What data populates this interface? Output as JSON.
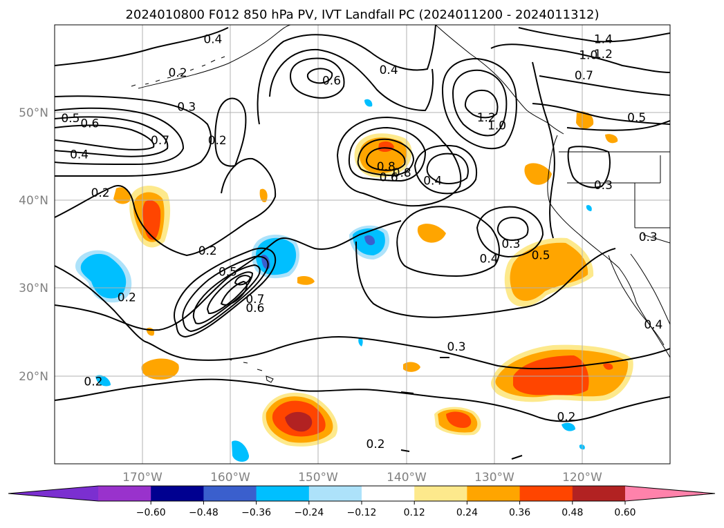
{
  "title": "2024010800 F012 850 hPa PV, IVT Landfall PC (2024011200 - 2024011312)",
  "map": {
    "lon_range": [
      -180,
      -110
    ],
    "lat_range": [
      10,
      60
    ],
    "lon_ticks": [
      {
        "value": -170,
        "label": "170°W"
      },
      {
        "value": -160,
        "label": "160°W"
      },
      {
        "value": -150,
        "label": "150°W"
      },
      {
        "value": -140,
        "label": "140°W"
      },
      {
        "value": -130,
        "label": "130°W"
      },
      {
        "value": -120,
        "label": "120°W"
      }
    ],
    "lat_ticks": [
      {
        "value": 50,
        "label": "50°N"
      },
      {
        "value": 40,
        "label": "40°N"
      },
      {
        "value": 30,
        "label": "30°N"
      },
      {
        "value": 20,
        "label": "20°N"
      }
    ],
    "grid": true
  },
  "colorbar": {
    "orientation": "horizontal",
    "extend": "both",
    "colors": [
      "#7b2fd0",
      "#9932cc",
      "#000090",
      "#3a5fcd",
      "#00bfff",
      "#ade2fa",
      "#ffffff",
      "#fde98c",
      "#ffa500",
      "#ff4500",
      "#b22222",
      "#ff82ab"
    ],
    "tick_labels": [
      "−0.60",
      "−0.48",
      "−0.36",
      "−0.24",
      "−0.12",
      "0.12",
      "0.24",
      "0.36",
      "0.48",
      "0.60"
    ]
  },
  "contour_labels": [
    {
      "text": "0.4",
      "lon": -162,
      "lat": 58.3
    },
    {
      "text": "0.2",
      "lon": -166,
      "lat": 54.5
    },
    {
      "text": "0.3",
      "lon": -165,
      "lat": 50.6
    },
    {
      "text": "0.5",
      "lon": -178.2,
      "lat": 49.3
    },
    {
      "text": "0.6",
      "lon": -176,
      "lat": 48.7
    },
    {
      "text": "0.7",
      "lon": -168,
      "lat": 46.8
    },
    {
      "text": "0.4",
      "lon": -177.2,
      "lat": 45.2
    },
    {
      "text": "0.2",
      "lon": -161.5,
      "lat": 46.8
    },
    {
      "text": "0.2",
      "lon": -174.8,
      "lat": 40.8
    },
    {
      "text": "0.6",
      "lon": -148.5,
      "lat": 53.6
    },
    {
      "text": "0.4",
      "lon": -142,
      "lat": 54.8
    },
    {
      "text": "0.8",
      "lon": -142.3,
      "lat": 43.8
    },
    {
      "text": "0.6",
      "lon": -142,
      "lat": 42.6
    },
    {
      "text": "0.8",
      "lon": -140.5,
      "lat": 43.1
    },
    {
      "text": "0.4",
      "lon": -137,
      "lat": 42.2
    },
    {
      "text": "1.2",
      "lon": -130.9,
      "lat": 49.4
    },
    {
      "text": "1.0",
      "lon": -129.7,
      "lat": 48.5
    },
    {
      "text": "1.4",
      "lon": -117.6,
      "lat": 58.3
    },
    {
      "text": "1.2",
      "lon": -117.6,
      "lat": 56.6
    },
    {
      "text": "1.0",
      "lon": -119.3,
      "lat": 56.5
    },
    {
      "text": "0.7",
      "lon": -119.8,
      "lat": 54.2
    },
    {
      "text": "0.5",
      "lon": -113.8,
      "lat": 49.4
    },
    {
      "text": "0.3",
      "lon": -117.6,
      "lat": 41.7
    },
    {
      "text": "0.3",
      "lon": -112.5,
      "lat": 35.8
    },
    {
      "text": "0.3",
      "lon": -128.1,
      "lat": 35
    },
    {
      "text": "0.4",
      "lon": -130.6,
      "lat": 33.3
    },
    {
      "text": "0.5",
      "lon": -124.7,
      "lat": 33.7
    },
    {
      "text": "0.2",
      "lon": -162.6,
      "lat": 34.2
    },
    {
      "text": "0.5",
      "lon": -160.3,
      "lat": 31.8
    },
    {
      "text": "0.7",
      "lon": -157.2,
      "lat": 28.7
    },
    {
      "text": "0.6",
      "lon": -157.2,
      "lat": 27.7
    },
    {
      "text": "0.2",
      "lon": -171.8,
      "lat": 28.9
    },
    {
      "text": "0.3",
      "lon": -134.3,
      "lat": 23.3
    },
    {
      "text": "0.4",
      "lon": -111.9,
      "lat": 25.8
    },
    {
      "text": "0.2",
      "lon": -175.6,
      "lat": 19.3
    },
    {
      "text": "0.2",
      "lon": -121.8,
      "lat": 15.3
    },
    {
      "text": "0.2",
      "lon": -143.5,
      "lat": 12.2
    }
  ]
}
